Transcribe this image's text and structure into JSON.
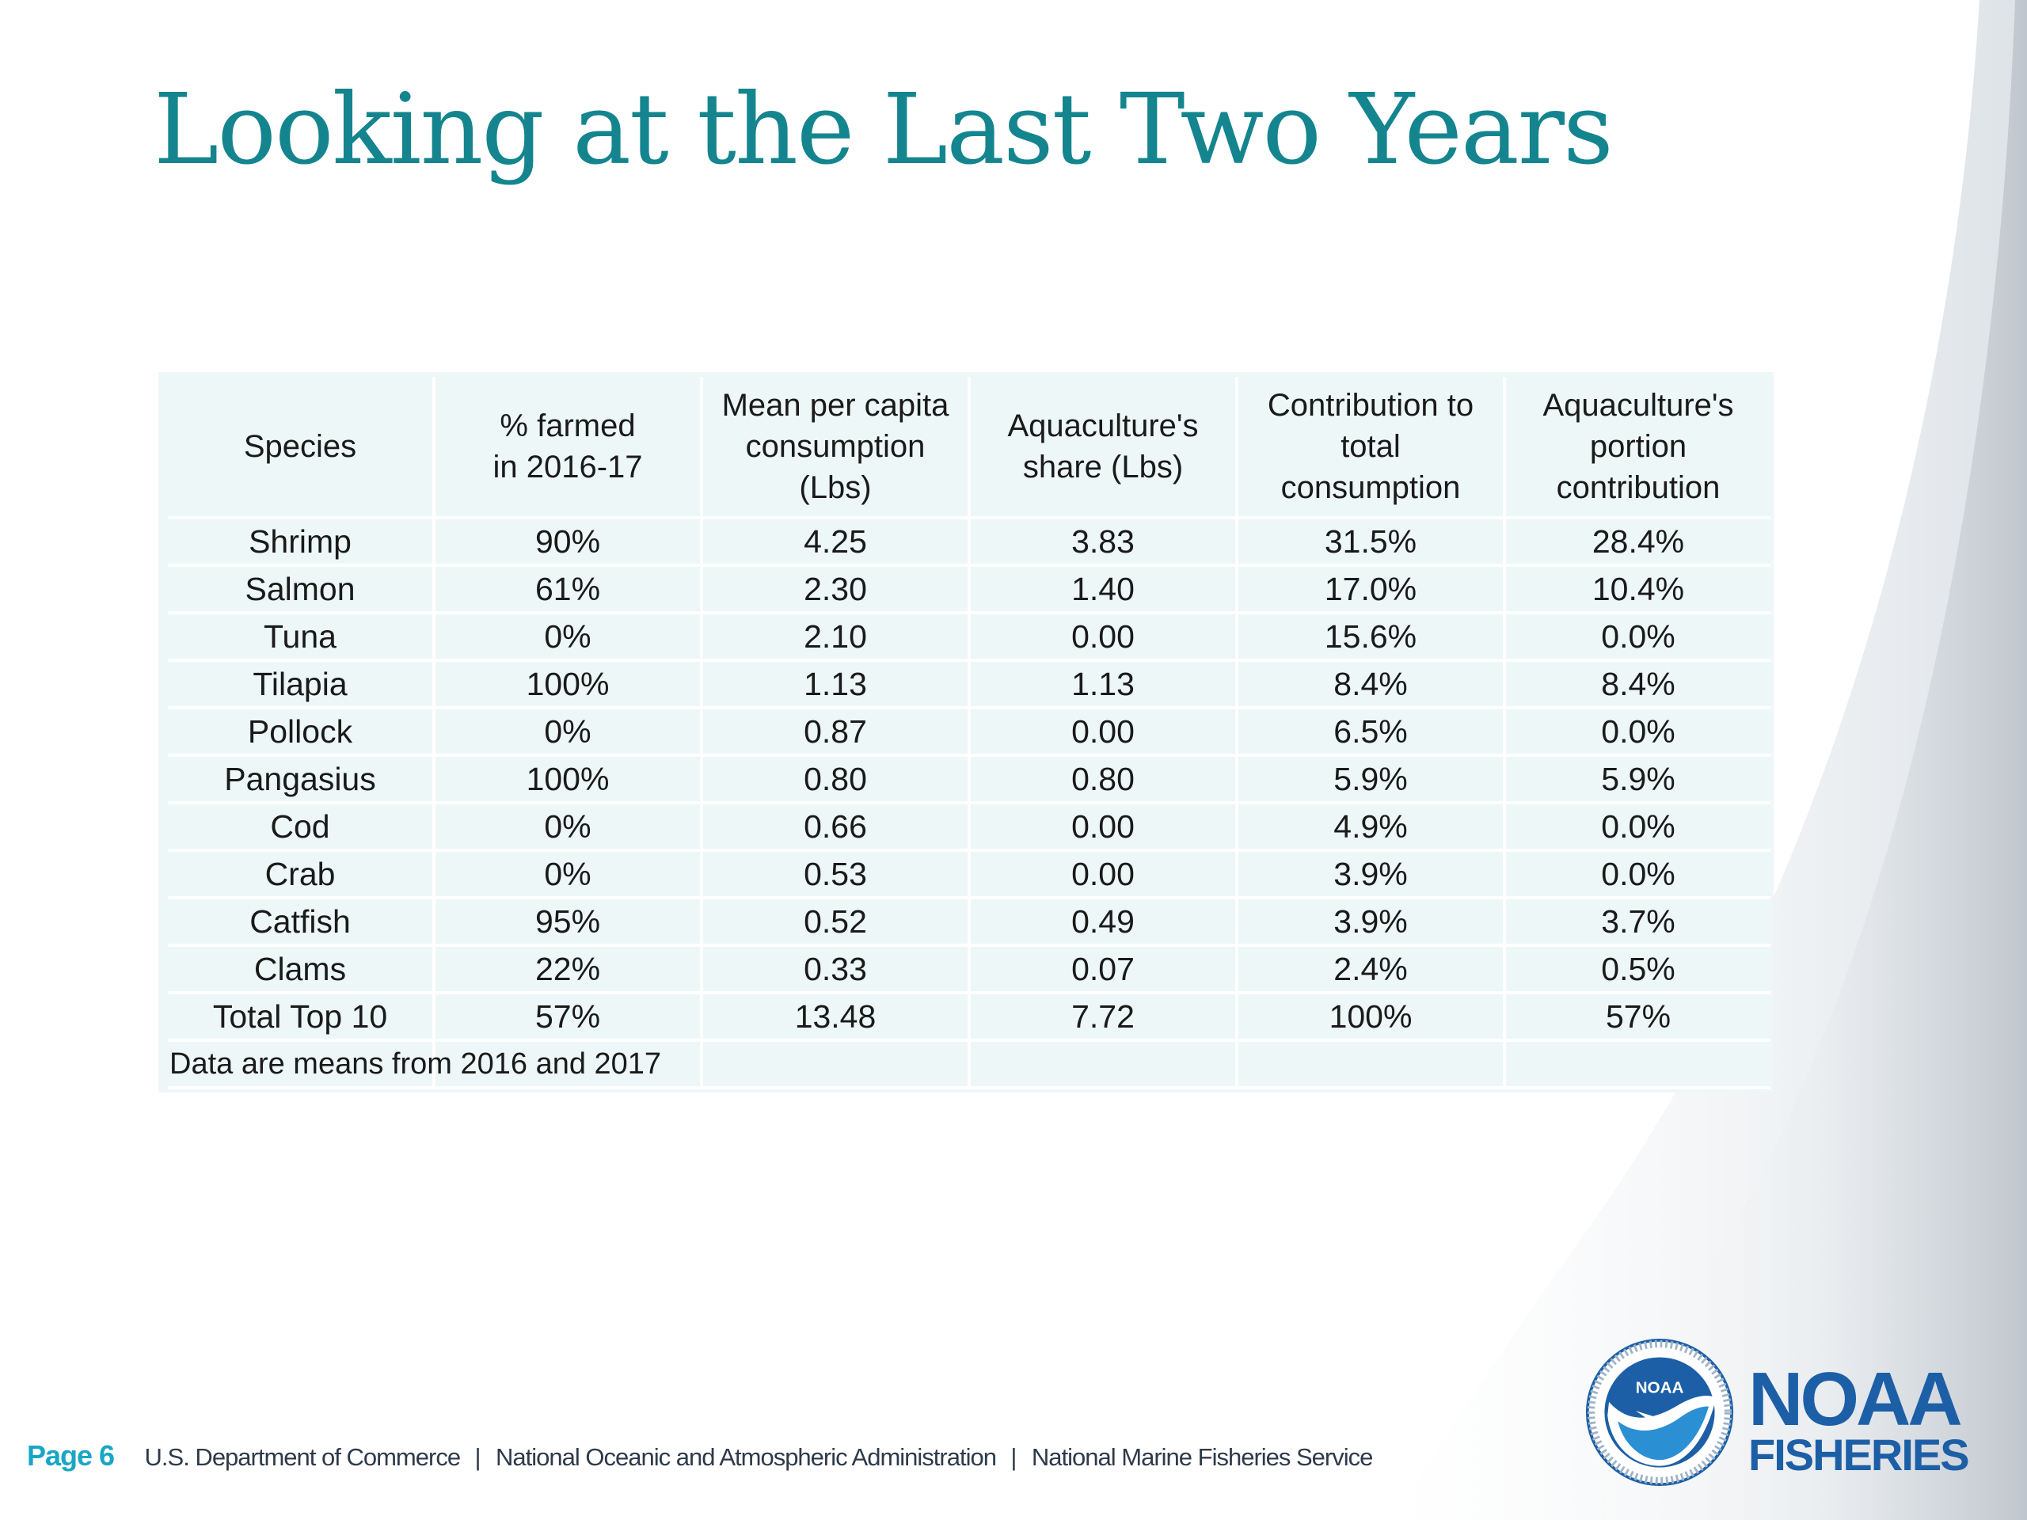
{
  "slide": {
    "title": "Looking at the Last Two Years"
  },
  "table": {
    "headers": [
      "Species",
      "% farmed\nin 2016-17",
      "Mean per capita\nconsumption\n(Lbs)",
      "Aquaculture's\nshare (Lbs)",
      "Contribution to\ntotal\nconsumption",
      "Aquaculture's\nportion\ncontribution"
    ],
    "rows": [
      [
        "Shrimp",
        "90%",
        "4.25",
        "3.83",
        "31.5%",
        "28.4%"
      ],
      [
        "Salmon",
        "61%",
        "2.30",
        "1.40",
        "17.0%",
        "10.4%"
      ],
      [
        "Tuna",
        "0%",
        "2.10",
        "0.00",
        "15.6%",
        "0.0%"
      ],
      [
        "Tilapia",
        "100%",
        "1.13",
        "1.13",
        "8.4%",
        "8.4%"
      ],
      [
        "Pollock",
        "0%",
        "0.87",
        "0.00",
        "6.5%",
        "0.0%"
      ],
      [
        "Pangasius",
        "100%",
        "0.80",
        "0.80",
        "5.9%",
        "5.9%"
      ],
      [
        "Cod",
        "0%",
        "0.66",
        "0.00",
        "4.9%",
        "0.0%"
      ],
      [
        "Crab",
        "0%",
        "0.53",
        "0.00",
        "3.9%",
        "0.0%"
      ],
      [
        "Catfish",
        "95%",
        "0.52",
        "0.49",
        "3.9%",
        "3.7%"
      ],
      [
        "Clams",
        "22%",
        "0.33",
        "0.07",
        "2.4%",
        "0.5%"
      ],
      [
        "Total Top 10",
        "57%",
        "13.48",
        "7.72",
        "100%",
        "57%"
      ]
    ],
    "note": "Data are means from 2016 and 2017"
  },
  "footer": {
    "page_label": "Page 6",
    "agencies": [
      "U.S. Department of Commerce",
      "National Oceanic and Atmospheric Administration",
      "National Marine Fisheries Service"
    ],
    "separator": "|"
  },
  "logo": {
    "seal_text": "NOAA",
    "wordmark_line1": "NOAA",
    "wordmark_line2": "FISHERIES"
  },
  "colors": {
    "title": "#14858e",
    "table_background": "#edf7f8",
    "page_label": "#19a6c5",
    "logo_blue": "#1c5fa6"
  }
}
